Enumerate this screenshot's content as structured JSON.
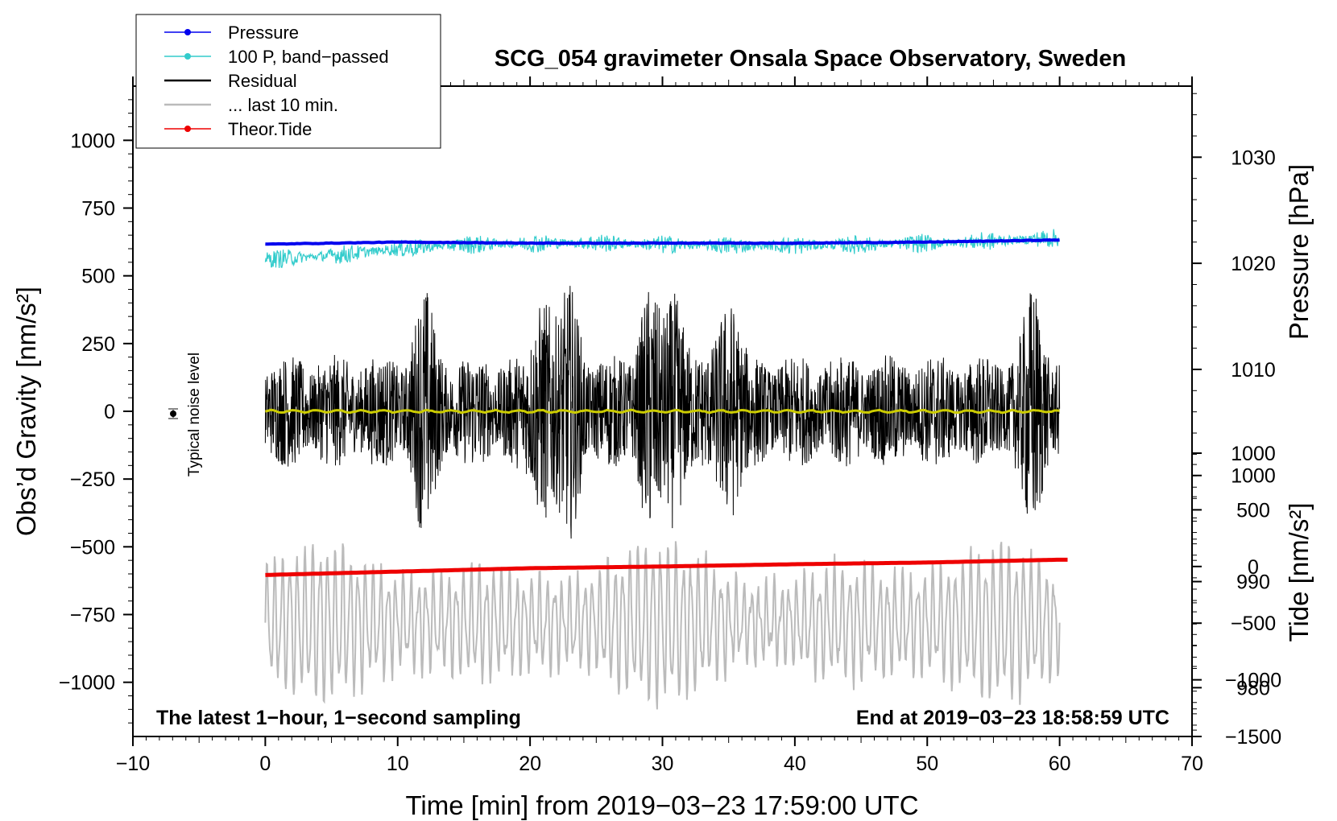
{
  "chart_data": {
    "type": "line",
    "title": "SCG_054 gravimeter Onsala Space Observatory, Sweden",
    "xlabel": "Time [min] from 2019−03−23 17:59:00 UTC",
    "ylabel": "Obs’d Gravity [nm/s²]",
    "ylabel_right_top": "Pressure [hPa]",
    "ylabel_right_bottom": "Tide [nm/s²]",
    "xlim": [
      -10,
      70
    ],
    "ylim": [
      -1200,
      1200
    ],
    "x_ticks": [
      "−10",
      "0",
      "10",
      "20",
      "30",
      "40",
      "50",
      "60",
      "70"
    ],
    "x_tick_values": [
      -10,
      0,
      10,
      20,
      30,
      40,
      50,
      60,
      70
    ],
    "y_ticks": [
      "1000",
      "750",
      "500",
      "250",
      "0",
      "−250",
      "−500",
      "−750",
      "−1000"
    ],
    "y_tick_values": [
      1000,
      750,
      500,
      250,
      0,
      -250,
      -500,
      -750,
      -1000
    ],
    "pressure_axis": {
      "ticks": [
        "1030",
        "1020",
        "1010",
        "1000",
        "990",
        "980"
      ],
      "tick_values": [
        1030,
        1020,
        1010,
        1000,
        990,
        980
      ],
      "range": [
        975.4,
        1036.7
      ]
    },
    "tide_axis": {
      "ticks": [
        "1000",
        "500",
        "0",
        "−500",
        "−1000",
        "−1500"
      ],
      "tick_values": [
        1000,
        500,
        0,
        -500,
        -1000,
        -1500
      ],
      "range": [
        -1500,
        1000
      ]
    },
    "legend": [
      {
        "name": "Pressure",
        "color": "#0000ee",
        "marker": true
      },
      {
        "name": "100 P, band−passed",
        "color": "#33cccc",
        "marker": true
      },
      {
        "name": "Residual",
        "color": "#000000",
        "marker": false
      },
      {
        "name": "... last 10 min.",
        "color": "#bbbbbb",
        "marker": false
      },
      {
        "name": "Theor.Tide",
        "color": "#ee0000",
        "marker": true
      }
    ],
    "legend_position": "top-left",
    "series": [
      {
        "name": "Pressure",
        "axis": "pressure",
        "x": [
          0,
          10,
          20,
          30,
          40,
          50,
          60
        ],
        "values": [
          1021.8,
          1022.0,
          1021.9,
          1021.9,
          1021.9,
          1022.0,
          1022.2
        ]
      },
      {
        "name": "100 P, band−passed",
        "axis": "gravity",
        "x": [
          0,
          5,
          10,
          15,
          20,
          25,
          30,
          35,
          40,
          45,
          50,
          55,
          60
        ],
        "values": [
          560,
          575,
          600,
          615,
          620,
          622,
          615,
          612,
          612,
          615,
          620,
          628,
          640
        ],
        "amplitude": 35
      },
      {
        "name": "Residual",
        "axis": "gravity",
        "x": [
          0,
          60
        ],
        "values": [
          0,
          0
        ],
        "amplitude": 300,
        "bursts_min": [
          12,
          21,
          23,
          29,
          31,
          35,
          58
        ]
      },
      {
        "name": "Residual smoothed",
        "axis": "gravity",
        "color": "#cccc00",
        "x": [
          0,
          60
        ],
        "values": [
          0,
          0
        ]
      },
      {
        "name": "... last 10 min.",
        "axis": "gravity",
        "x": [
          0,
          10,
          20,
          30,
          40,
          50,
          60
        ],
        "values": [
          -780,
          -780,
          -780,
          -780,
          -780,
          -780,
          -780
        ],
        "amplitude": 220
      },
      {
        "name": "Theor.Tide",
        "axis": "tide",
        "x": [
          0,
          10,
          20,
          30,
          40,
          50,
          60
        ],
        "values": [
          -75,
          -45,
          -15,
          0,
          20,
          35,
          60
        ]
      }
    ],
    "noise_marker": {
      "x": -7,
      "y": 0,
      "error": 25,
      "label": "Typical noise level"
    },
    "annotations": {
      "bottom_left": "The latest 1−hour, 1−second sampling",
      "bottom_right": "End at 2019−03−23 18:58:59 UTC"
    },
    "colors": {
      "pressure": "#0000ee",
      "bandpass": "#33cccc",
      "residual": "#000000",
      "smoothed": "#cccc00",
      "last10": "#bbbbbb",
      "tide": "#ee0000"
    }
  }
}
